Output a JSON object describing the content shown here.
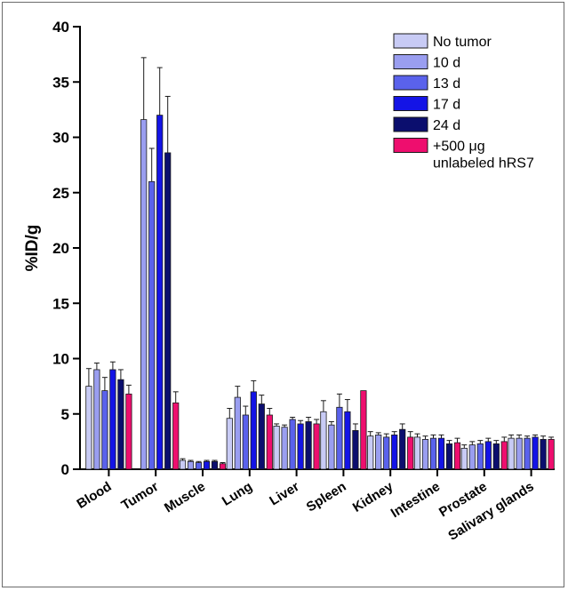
{
  "chart_data": {
    "type": "bar",
    "ylabel": "%ID/g",
    "xlabel": "",
    "ylim": [
      0,
      40
    ],
    "yticks": [
      "0",
      "5",
      "10",
      "15",
      "20",
      "25",
      "30",
      "35",
      "40"
    ],
    "categories": [
      "Blood",
      "Tumor",
      "Muscle",
      "Lung",
      "Liver",
      "Spleen",
      "Kidney",
      "Intestine",
      "Prostate",
      "Salivary glands"
    ],
    "legend_position": "top-right",
    "series": [
      {
        "name": "No tumor",
        "color": "#c8cbf5",
        "values": [
          7.5,
          0,
          0.8,
          4.6,
          3.9,
          5.2,
          3.0,
          2.9,
          1.9,
          2.8
        ],
        "errors": [
          1.6,
          0,
          0.15,
          0.9,
          0.2,
          1.0,
          0.4,
          0.3,
          0.3,
          0.3
        ]
      },
      {
        "name": "10 d",
        "color": "#9a9ef0",
        "values": [
          9.0,
          31.6,
          0.7,
          6.5,
          3.8,
          4.0,
          3.1,
          2.7,
          2.2,
          2.8
        ],
        "errors": [
          0.6,
          5.6,
          0.1,
          1.0,
          0.2,
          0.3,
          0.2,
          0.3,
          0.3,
          0.3
        ]
      },
      {
        "name": "13 d",
        "color": "#5a62ec",
        "values": [
          7.1,
          26.0,
          0.6,
          4.9,
          4.5,
          5.6,
          2.9,
          2.8,
          2.3,
          2.8
        ],
        "errors": [
          1.2,
          3.0,
          0.1,
          0.8,
          0.2,
          1.2,
          0.3,
          0.3,
          0.3,
          0.2
        ]
      },
      {
        "name": "17 d",
        "color": "#1414e6",
        "values": [
          9.0,
          32.0,
          0.7,
          7.0,
          4.1,
          5.2,
          3.1,
          2.8,
          2.5,
          2.9
        ],
        "errors": [
          0.7,
          4.3,
          0.1,
          1.0,
          0.3,
          1.1,
          0.3,
          0.3,
          0.3,
          0.2
        ]
      },
      {
        "name": "24 d",
        "color": "#0b0e6e",
        "values": [
          8.1,
          28.6,
          0.7,
          5.9,
          4.3,
          3.5,
          3.6,
          2.3,
          2.3,
          2.7
        ],
        "errors": [
          0.9,
          5.1,
          0.1,
          0.8,
          0.4,
          0.6,
          0.5,
          0.3,
          0.3,
          0.3
        ]
      },
      {
        "name": "+500 μg unlabeled hRS7",
        "color": "#ee0e6e",
        "values": [
          6.8,
          6.0,
          0.5,
          4.9,
          4.1,
          7.1,
          2.9,
          2.4,
          2.5,
          2.7
        ],
        "errors": [
          0.8,
          1.0,
          0.1,
          0.6,
          0.4,
          0,
          0.5,
          0.4,
          0.4,
          0.2
        ]
      }
    ],
    "legend_lines": [
      [
        "No tumor"
      ],
      [
        "10 d"
      ],
      [
        "13 d"
      ],
      [
        "17 d"
      ],
      [
        "24 d"
      ],
      [
        "+500 μg",
        "unlabeled hRS7"
      ]
    ]
  }
}
